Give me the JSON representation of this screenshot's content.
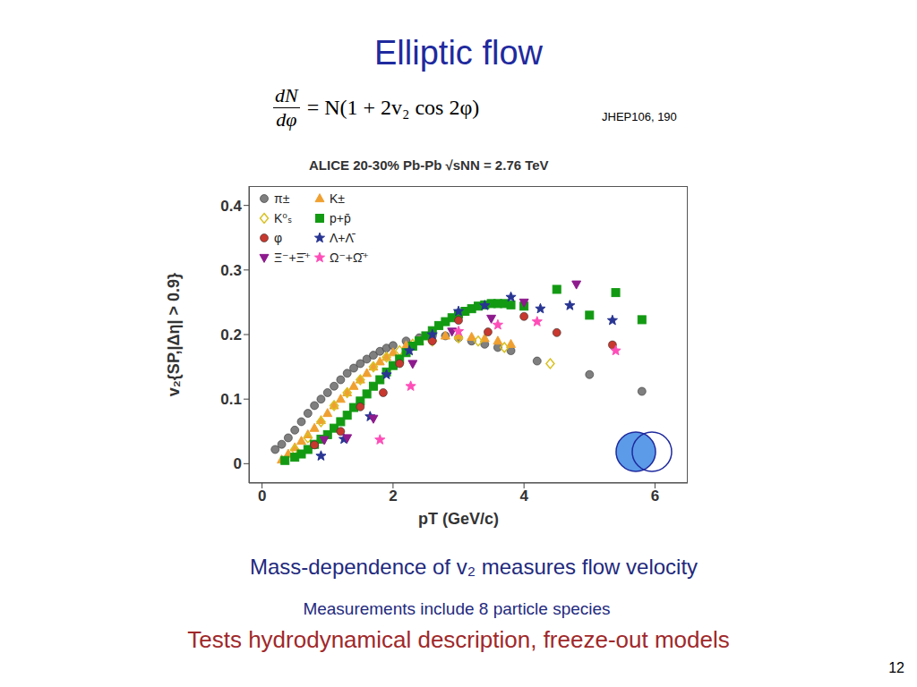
{
  "slide": {
    "title": "Elliptic flow",
    "formula": {
      "numerator": "dN",
      "denominator": "dφ",
      "rhs": "= N(1 + 2v₂ cos 2φ)"
    },
    "reference": "JHEP106, 190",
    "captions": [
      "Mass-dependence of v₂ measures flow velocity",
      "Measurements include 8 particle species",
      "Tests hydrodynamical description, freeze-out models"
    ],
    "page_number": "12"
  },
  "chart_data": {
    "type": "scatter",
    "title": "ALICE 20-30% Pb-Pb √sNN = 2.76 TeV",
    "x_label": "pT (GeV/c)",
    "y_label": "v₂{SP,|Δη| > 0.9}",
    "xlim": [
      -0.2,
      6.5
    ],
    "xticks": [
      0,
      2,
      4,
      6
    ],
    "ylim": [
      -0.03,
      0.43
    ],
    "yticks": [
      0,
      0.1,
      0.2,
      0.3,
      0.4
    ],
    "legend": "upper left",
    "series": [
      {
        "name": "π±",
        "color": "#7f7f7f",
        "marker": "circle",
        "x": [
          0.2,
          0.3,
          0.4,
          0.5,
          0.6,
          0.7,
          0.8,
          0.9,
          1.0,
          1.1,
          1.2,
          1.3,
          1.4,
          1.5,
          1.6,
          1.7,
          1.8,
          1.9,
          2.0,
          2.2,
          2.4,
          2.6,
          2.8,
          3.0,
          3.2,
          3.4,
          3.6,
          3.8,
          4.2,
          5.0,
          5.8
        ],
        "values": [
          0.022,
          0.03,
          0.04,
          0.052,
          0.065,
          0.078,
          0.09,
          0.1,
          0.11,
          0.12,
          0.13,
          0.14,
          0.148,
          0.155,
          0.162,
          0.168,
          0.174,
          0.179,
          0.183,
          0.19,
          0.195,
          0.198,
          0.198,
          0.195,
          0.19,
          0.185,
          0.18,
          0.175,
          0.159,
          0.138,
          0.112
        ]
      },
      {
        "name": "K±",
        "color": "#f0a030",
        "marker": "triangle",
        "x": [
          0.3,
          0.4,
          0.5,
          0.6,
          0.7,
          0.8,
          0.9,
          1.0,
          1.1,
          1.2,
          1.3,
          1.4,
          1.5,
          1.6,
          1.7,
          1.8,
          1.9,
          2.0,
          2.2,
          2.4,
          2.6,
          2.8,
          3.0,
          3.2,
          3.4,
          3.6,
          3.8
        ],
        "values": [
          0.006,
          0.015,
          0.025,
          0.035,
          0.045,
          0.055,
          0.067,
          0.078,
          0.09,
          0.1,
          0.11,
          0.12,
          0.13,
          0.14,
          0.15,
          0.158,
          0.165,
          0.172,
          0.183,
          0.19,
          0.195,
          0.198,
          0.198,
          0.196,
          0.194,
          0.19,
          0.185
        ]
      },
      {
        "name": "K⁰ₛ",
        "color": "#d8c020",
        "marker": "open_diamond",
        "x": [
          0.5,
          0.7,
          0.9,
          1.1,
          1.3,
          1.5,
          1.7,
          1.9,
          2.1,
          2.3,
          2.6,
          3.0,
          3.3,
          3.7,
          4.4
        ],
        "values": [
          0.022,
          0.04,
          0.065,
          0.09,
          0.11,
          0.13,
          0.15,
          0.165,
          0.175,
          0.185,
          0.19,
          0.195,
          0.19,
          0.18,
          0.155
        ]
      },
      {
        "name": "p+p̄",
        "color": "#139a13",
        "marker": "square",
        "x": [
          0.35,
          0.5,
          0.6,
          0.7,
          0.8,
          0.9,
          1.0,
          1.1,
          1.2,
          1.3,
          1.4,
          1.5,
          1.6,
          1.7,
          1.8,
          1.9,
          2.0,
          2.1,
          2.2,
          2.3,
          2.4,
          2.5,
          2.6,
          2.7,
          2.8,
          2.9,
          3.0,
          3.1,
          3.2,
          3.3,
          3.4,
          3.5,
          3.6,
          3.7,
          3.8,
          4.0,
          4.5,
          5.0,
          5.4,
          5.8
        ],
        "values": [
          0.005,
          0.01,
          0.015,
          0.022,
          0.03,
          0.038,
          0.045,
          0.055,
          0.065,
          0.075,
          0.087,
          0.097,
          0.108,
          0.12,
          0.13,
          0.142,
          0.152,
          0.162,
          0.172,
          0.182,
          0.19,
          0.198,
          0.206,
          0.214,
          0.22,
          0.226,
          0.232,
          0.236,
          0.24,
          0.244,
          0.246,
          0.248,
          0.248,
          0.248,
          0.246,
          0.244,
          0.27,
          0.23,
          0.265,
          0.223
        ]
      },
      {
        "name": "φ",
        "color": "#c8382e",
        "marker": "circle",
        "x": [
          0.8,
          1.2,
          1.5,
          1.85,
          2.1,
          2.6,
          3.0,
          3.45,
          4.0,
          4.5,
          5.35
        ],
        "values": [
          0.029,
          0.05,
          0.088,
          0.11,
          0.155,
          0.19,
          0.222,
          0.204,
          0.228,
          0.203,
          0.184
        ]
      },
      {
        "name": "Λ+Λ̄",
        "color": "#283593",
        "marker": "star",
        "x": [
          0.9,
          1.25,
          1.65,
          1.9,
          2.25,
          2.6,
          3.0,
          3.4,
          3.8,
          4.25,
          4.7,
          5.35
        ],
        "values": [
          0.012,
          0.038,
          0.073,
          0.138,
          0.175,
          0.2,
          0.236,
          0.245,
          0.258,
          0.24,
          0.245,
          0.222
        ]
      },
      {
        "name": "Ξ⁻+Ξ̄⁺",
        "color": "#8e1a8e",
        "marker": "triangle_down",
        "x": [
          0.95,
          1.3,
          1.7,
          2.3,
          2.9,
          3.5,
          4.0,
          4.8
        ],
        "values": [
          0.037,
          0.04,
          0.07,
          0.155,
          0.205,
          0.225,
          0.25,
          0.278
        ]
      },
      {
        "name": "Ω⁻+Ω̄⁺",
        "color": "#ff4db8",
        "marker": "star",
        "x": [
          1.8,
          2.27,
          3.0,
          3.6,
          4.2,
          5.4
        ],
        "values": [
          0.037,
          0.12,
          0.205,
          0.215,
          0.22,
          0.175
        ]
      }
    ]
  }
}
